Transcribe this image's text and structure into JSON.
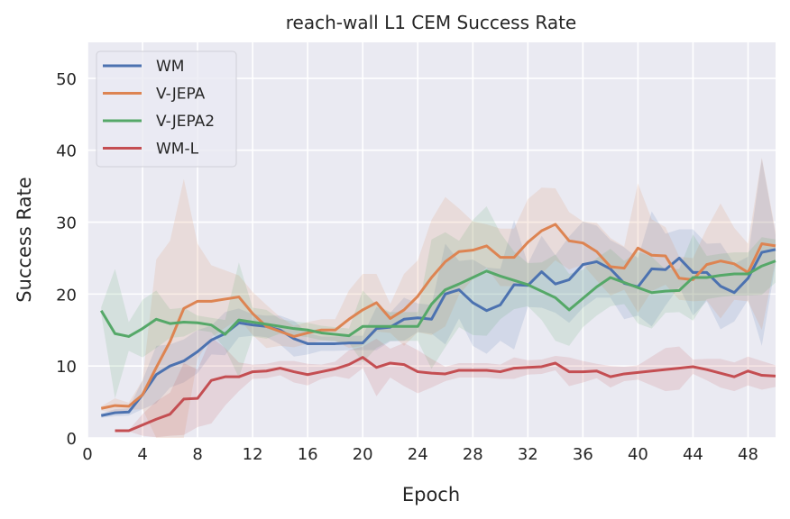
{
  "chart_data": {
    "type": "line",
    "title": "reach-wall L1 CEM Success Rate",
    "xlabel": "Epoch",
    "ylabel": "Success Rate",
    "xlim": [
      0,
      50
    ],
    "ylim": [
      0,
      55
    ],
    "xticks": [
      0,
      4,
      8,
      12,
      16,
      20,
      24,
      28,
      32,
      36,
      40,
      44,
      48
    ],
    "yticks": [
      0,
      10,
      20,
      30,
      40,
      50
    ],
    "grid": true,
    "legend_position": "top-left",
    "background": "#eaeaf2",
    "series": [
      {
        "name": "WM",
        "color": "#4c72b0",
        "x_start": 1,
        "values": [
          3.1,
          3.5,
          3.6,
          6,
          8.8,
          10,
          10.7,
          12,
          13.6,
          14.5,
          16,
          15.7,
          15.5,
          15,
          13.8,
          13.1,
          13.1,
          13.1,
          13.2,
          13.2,
          15.2,
          15.4,
          16.5,
          16.7,
          16.5,
          20,
          20.6,
          18.8,
          17.7,
          18.5,
          21.3,
          21.2,
          23.1,
          21.4,
          22,
          24.1,
          24.5,
          23.5,
          21.5,
          21,
          23.5,
          23.4,
          25,
          23,
          23,
          21.1,
          20.2,
          22.2,
          25.8,
          26.2
        ],
        "spread": [
          0.3,
          0.5,
          0.5,
          2,
          4,
          3,
          3,
          3,
          2,
          3,
          2,
          1.5,
          1.5,
          2,
          2.5,
          1.5,
          1,
          1,
          1,
          1,
          3,
          2,
          3,
          2,
          2,
          7,
          4,
          6,
          6,
          5,
          9,
          3,
          5,
          4,
          6,
          6,
          5,
          4,
          5,
          4,
          8,
          5,
          4,
          6,
          4,
          6,
          4,
          3,
          13,
          2
        ]
      },
      {
        "name": "V-JEPA",
        "color": "#dd8452",
        "x_start": 1,
        "values": [
          4.1,
          4.5,
          4.4,
          6,
          9.8,
          13.4,
          18,
          19,
          19,
          19.3,
          19.6,
          17.3,
          15.5,
          14.8,
          14.1,
          14.6,
          15,
          15,
          16.5,
          17.8,
          18.8,
          16.6,
          17.8,
          19.7,
          22.3,
          24.5,
          25.9,
          26.1,
          26.7,
          25.1,
          25.1,
          27.2,
          28.8,
          29.7,
          27.4,
          27.1,
          25.9,
          23.8,
          23.6,
          26.4,
          25.4,
          25.3,
          22.2,
          22,
          24.1,
          24.6,
          24.2,
          23,
          27,
          26.7
        ],
        "spread": [
          0.3,
          1,
          0.5,
          2,
          15,
          14,
          18,
          8,
          5,
          4,
          3,
          3,
          3,
          2,
          1.5,
          1.5,
          1.5,
          1.5,
          4,
          5,
          4,
          2,
          5,
          5,
          8,
          9,
          6,
          4,
          3,
          4,
          4,
          6,
          6,
          5,
          4,
          3,
          4,
          4,
          3,
          9,
          5,
          4,
          3,
          3,
          5,
          8,
          5,
          4,
          12,
          2
        ]
      },
      {
        "name": "V-JEPA2",
        "color": "#55a868",
        "x_start": 1,
        "values": [
          17.7,
          14.5,
          14.1,
          15.2,
          16.5,
          15.9,
          16.1,
          16,
          15.7,
          14.4,
          16.4,
          16.1,
          15.8,
          15.5,
          15.2,
          15,
          14.6,
          14.4,
          14.2,
          15.5,
          15.5,
          15.5,
          15.5,
          15.5,
          18.6,
          20.6,
          21.4,
          22.3,
          23.2,
          22.5,
          21.9,
          21.3,
          20.4,
          19.5,
          17.8,
          19.4,
          21,
          22.3,
          21.6,
          20.9,
          20.2,
          20.4,
          20.5,
          22.3,
          22.3,
          22.6,
          22.8,
          22.8,
          23.9,
          24.6
        ],
        "spread": [
          0.5,
          9,
          2,
          4,
          4,
          2,
          2,
          1,
          1,
          2,
          8,
          2,
          2,
          1,
          1,
          1,
          1,
          1,
          1,
          5,
          3,
          2,
          2,
          2,
          9,
          8,
          6,
          8,
          9,
          6,
          4,
          3,
          4,
          6,
          5,
          4,
          4,
          4,
          3,
          5,
          5,
          3,
          3,
          6,
          3,
          3,
          3,
          3,
          4,
          3
        ]
      },
      {
        "name": "WM-L",
        "color": "#c44e52",
        "x_start": 2,
        "values": [
          1.0,
          1.0,
          1.8,
          2.6,
          3.3,
          5.4,
          5.5,
          8.0,
          8.5,
          8.5,
          9.2,
          9.3,
          9.7,
          9.2,
          8.8,
          9.2,
          9.6,
          10.2,
          11.2,
          9.8,
          10.4,
          10.2,
          9.2,
          9.0,
          8.9,
          9.4,
          9.4,
          9.4,
          9.2,
          9.7,
          9.8,
          9.9,
          10.4,
          9.2,
          9.2,
          9.3,
          8.5,
          8.9,
          9.1,
          9.3,
          9.5,
          9.7,
          9.9,
          9.5,
          9.0,
          8.5,
          9.3,
          8.7,
          8.6
        ],
        "spread": [
          0.1,
          0.1,
          1.5,
          2.5,
          3,
          5,
          4,
          6,
          4,
          2,
          1,
          1,
          1,
          1.5,
          1.5,
          1,
          1,
          2,
          1.5,
          4,
          2,
          3,
          3,
          2,
          1,
          1,
          1,
          1,
          1,
          1.5,
          1,
          1,
          1,
          2,
          1.5,
          1,
          1.5,
          1,
          1,
          2,
          3,
          3,
          1,
          1.5,
          2,
          2,
          2,
          2,
          1.5
        ]
      }
    ]
  }
}
